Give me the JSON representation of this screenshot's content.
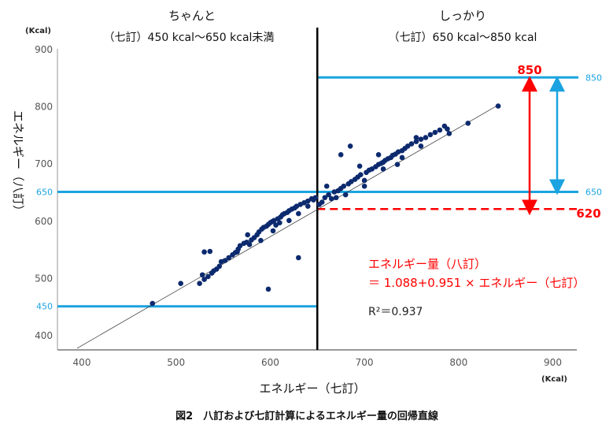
{
  "chart_data": {
    "type": "scatter",
    "title": "図2　八訂および七訂計算によるエネルギー量の回帰直線",
    "xlabel": "エネルギー（七訂）",
    "ylabel": "エネルギー（八訂）",
    "x_unit": "(Kcal)",
    "y_unit": "(Kcal)",
    "xlim": [
      373,
      927
    ],
    "ylim": [
      374,
      925
    ],
    "x_ticks": [
      400,
      500,
      600,
      700,
      800,
      900
    ],
    "y_ticks": [
      400,
      500,
      600,
      700,
      800,
      900
    ],
    "grid": false,
    "regions": [
      {
        "name": "ちゃんと",
        "range_label": "（七訂）450 kcal～650 kcal未満"
      },
      {
        "name": "しっかり",
        "range_label": "（七訂）650 kcal～850 kcal"
      }
    ],
    "divider_x": 650,
    "reference_lines": [
      {
        "y": 850,
        "label": "850",
        "color": "#1aa3e0"
      },
      {
        "y": 650,
        "label": "650",
        "color": "#1aa3e0"
      },
      {
        "y": 450,
        "label": "450",
        "color": "#1aa3e0"
      },
      {
        "y": 620,
        "label": "620",
        "color": "#ff0000",
        "dashed": true
      }
    ],
    "arrow_labels": {
      "red_top": "850",
      "red_bottom": "620"
    },
    "regression": {
      "intercept": 1.088,
      "slope": 0.951,
      "x_range": [
        395,
        840
      ],
      "equation_line1": "エネルギー量（八訂）",
      "equation_line2": "＝ 1.088+0.951 × エネルギー（七訂）",
      "r2_label": "R²＝0.937"
    },
    "colors": {
      "points": "#0d2a6e",
      "accent_blue": "#1aa3e0",
      "accent_red": "#ff0000"
    },
    "points": [
      [
        475,
        455
      ],
      [
        505,
        490
      ],
      [
        525,
        490
      ],
      [
        528,
        505
      ],
      [
        530,
        497
      ],
      [
        534,
        502
      ],
      [
        538,
        508
      ],
      [
        540,
        512
      ],
      [
        543,
        515
      ],
      [
        546,
        520
      ],
      [
        548,
        528
      ],
      [
        530,
        545
      ],
      [
        536,
        546
      ],
      [
        552,
        530
      ],
      [
        556,
        535
      ],
      [
        560,
        540
      ],
      [
        563,
        544
      ],
      [
        566,
        550
      ],
      [
        568,
        556
      ],
      [
        572,
        560
      ],
      [
        575,
        562
      ],
      [
        578,
        558
      ],
      [
        580,
        566
      ],
      [
        583,
        570
      ],
      [
        586,
        575
      ],
      [
        588,
        580
      ],
      [
        591,
        585
      ],
      [
        593,
        588
      ],
      [
        596,
        590
      ],
      [
        598,
        593
      ],
      [
        600,
        596
      ],
      [
        602,
        598
      ],
      [
        604,
        600
      ],
      [
        606,
        592
      ],
      [
        608,
        603
      ],
      [
        611,
        606
      ],
      [
        613,
        610
      ],
      [
        615,
        612
      ],
      [
        618,
        614
      ],
      [
        620,
        617
      ],
      [
        623,
        620
      ],
      [
        626,
        622
      ],
      [
        628,
        625
      ],
      [
        632,
        628
      ],
      [
        636,
        631
      ],
      [
        640,
        634
      ],
      [
        644,
        638
      ],
      [
        646,
        636
      ],
      [
        648,
        640
      ],
      [
        598,
        480
      ],
      [
        630,
        535
      ],
      [
        565,
        545
      ],
      [
        576,
        575
      ],
      [
        590,
        565
      ],
      [
        603,
        582
      ],
      [
        610,
        596
      ],
      [
        620,
        600
      ],
      [
        630,
        612
      ],
      [
        640,
        625
      ],
      [
        652,
        628
      ],
      [
        655,
        632
      ],
      [
        658,
        640
      ],
      [
        662,
        645
      ],
      [
        665,
        638
      ],
      [
        668,
        650
      ],
      [
        672,
        652
      ],
      [
        675,
        656
      ],
      [
        678,
        660
      ],
      [
        680,
        645
      ],
      [
        683,
        664
      ],
      [
        686,
        668
      ],
      [
        690,
        672
      ],
      [
        693,
        676
      ],
      [
        696,
        680
      ],
      [
        700,
        670
      ],
      [
        702,
        684
      ],
      [
        705,
        688
      ],
      [
        708,
        690
      ],
      [
        712,
        694
      ],
      [
        715,
        698
      ],
      [
        718,
        700
      ],
      [
        720,
        702
      ],
      [
        722,
        705
      ],
      [
        725,
        708
      ],
      [
        728,
        710
      ],
      [
        730,
        714
      ],
      [
        733,
        716
      ],
      [
        736,
        720
      ],
      [
        740,
        722
      ],
      [
        743,
        726
      ],
      [
        746,
        730
      ],
      [
        750,
        734
      ],
      [
        755,
        738
      ],
      [
        760,
        742
      ],
      [
        765,
        745
      ],
      [
        770,
        750
      ],
      [
        775,
        754
      ],
      [
        780,
        758
      ],
      [
        785,
        765
      ],
      [
        788,
        760
      ],
      [
        790,
        752
      ],
      [
        810,
        770
      ],
      [
        842,
        800
      ],
      [
        685,
        730
      ],
      [
        675,
        715
      ],
      [
        700,
        660
      ],
      [
        720,
        690
      ],
      [
        740,
        710
      ],
      [
        760,
        730
      ],
      [
        660,
        660
      ],
      [
        670,
        640
      ],
      [
        695,
        695
      ],
      [
        715,
        715
      ],
      [
        735,
        698
      ],
      [
        755,
        745
      ]
    ]
  }
}
